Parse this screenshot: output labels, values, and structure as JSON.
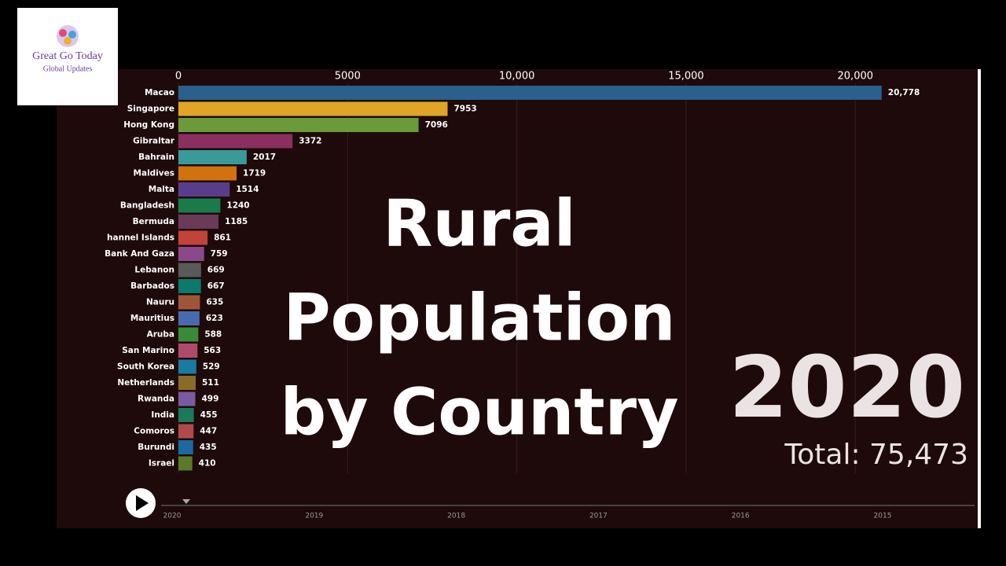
{
  "logo": {
    "title": "Great Go Today",
    "subtitle": "Global Updates"
  },
  "overlay": {
    "title_lines": [
      "Rural",
      "Population",
      "by Country"
    ],
    "year": "2020",
    "total": "Total: 75,473"
  },
  "timeline": {
    "labels": [
      "2020",
      "2019",
      "2018",
      "2017",
      "2016",
      "2015"
    ]
  },
  "chart_data": {
    "type": "bar",
    "orientation": "horizontal",
    "categories": [
      "Macao",
      "Singapore",
      "Hong Kong",
      "Gibraltar",
      "Bahrain",
      "Maldives",
      "Malta",
      "Bangladesh",
      "Bermuda",
      "hannel Islands",
      "Bank And Gaza",
      "Lebanon",
      "Barbados",
      "Nauru",
      "Mauritius",
      "Aruba",
      "San Marino",
      "South Korea",
      "Netherlands",
      "Rwanda",
      "India",
      "Comoros",
      "Burundi",
      "Israel"
    ],
    "values": [
      20778,
      7953,
      7096,
      3372,
      2017,
      1719,
      1514,
      1240,
      1185,
      861,
      759,
      669,
      667,
      635,
      623,
      588,
      563,
      529,
      511,
      499,
      455,
      447,
      435,
      410
    ],
    "value_labels": [
      "20,778",
      "7953",
      "7096",
      "3372",
      "2017",
      "1719",
      "1514",
      "1240",
      "1185",
      "861",
      "759",
      "669",
      "667",
      "635",
      "623",
      "588",
      "563",
      "529",
      "511",
      "499",
      "455",
      "447",
      "435",
      "410"
    ],
    "colors": [
      "#2b5f8c",
      "#e0a526",
      "#6a9a3a",
      "#8a2f5e",
      "#3a9a9a",
      "#d0720e",
      "#5a3d8a",
      "#1a7a4a",
      "#6a3a5a",
      "#c0443a",
      "#8a4a8a",
      "#5a5a5a",
      "#0a7a6a",
      "#a0553a",
      "#4a6ab0",
      "#3a8a3a",
      "#b04a6a",
      "#1a7aa0",
      "#8a6a2a",
      "#7a5aa0",
      "#1a7a5a",
      "#b04a4a",
      "#1a6aa0",
      "#5a7a2a"
    ],
    "xlim": [
      0,
      23500
    ],
    "xticks": [
      0,
      5000,
      {
        "value": 10000,
        "label": "10,000"
      },
      {
        "value": 15000,
        "label": "15,000"
      },
      {
        "value": 20000,
        "label": "20,000"
      }
    ],
    "grid": true
  }
}
